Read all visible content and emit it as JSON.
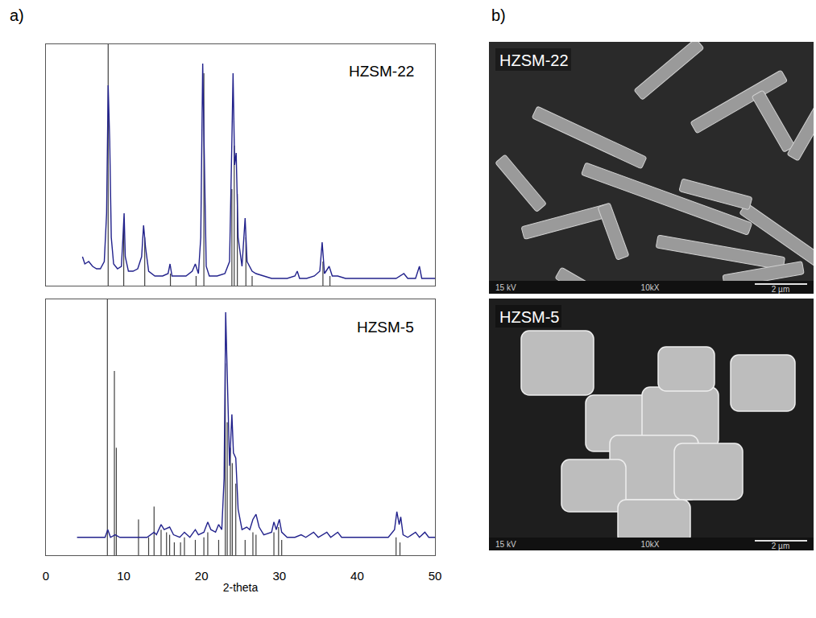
{
  "chart_data": [
    {
      "type": "line",
      "annotations": [
        "HZSM-22"
      ],
      "xlim": [
        0,
        50
      ],
      "ylim": [
        0,
        100
      ],
      "tick_labels": false,
      "grid": false,
      "series": [
        {
          "type": "stick",
          "color": "#404040",
          "line_style": "solid",
          "x": [
            8.0,
            10.0,
            12.7,
            16.0,
            19.3,
            20.3,
            23.9,
            24.2,
            24.6,
            25.7,
            26.5,
            35.6,
            36.5
          ],
          "values": [
            100,
            26,
            20,
            5,
            4,
            88,
            40,
            58,
            38,
            20,
            4,
            10,
            4
          ]
        },
        {
          "type": "line",
          "color": "#22228c",
          "line_style": "solid",
          "x": [
            4.7,
            5.0,
            5.5,
            6.0,
            6.5,
            7.0,
            7.5,
            7.8,
            8.0,
            8.2,
            8.4,
            8.7,
            9.2,
            9.7,
            9.9,
            10.05,
            10.2,
            10.6,
            11.2,
            11.8,
            12.3,
            12.55,
            12.8,
            13.2,
            14.0,
            15.0,
            15.7,
            15.95,
            16.2,
            17.0,
            18.0,
            18.8,
            19.2,
            19.6,
            19.9,
            20.15,
            20.35,
            20.6,
            21.0,
            22.0,
            23.0,
            23.6,
            23.9,
            24.05,
            24.25,
            24.45,
            24.7,
            25.2,
            25.6,
            25.85,
            26.5,
            27.0,
            28.0,
            29.0,
            30.0,
            31.0,
            32.0,
            32.3,
            32.6,
            33.5,
            34.5,
            35.2,
            35.5,
            35.8,
            36.4,
            36.8,
            37.5,
            38.5,
            40.0,
            42.0,
            44.0,
            45.0,
            46.0,
            46.5,
            47.5,
            48.0,
            48.3,
            49.0,
            50.0
          ],
          "values": [
            12,
            9,
            10,
            8,
            7,
            7,
            10,
            30,
            83,
            60,
            20,
            9,
            7,
            8,
            20,
            30,
            12,
            6,
            6,
            7,
            12,
            25,
            16,
            6,
            4,
            4,
            5,
            9,
            4,
            4,
            4,
            6,
            9,
            5,
            20,
            92,
            55,
            8,
            4,
            4,
            5,
            10,
            60,
            88,
            50,
            55,
            20,
            8,
            28,
            10,
            6,
            5,
            4,
            3,
            3,
            3,
            4,
            6,
            3,
            3,
            4,
            6,
            18,
            5,
            8,
            4,
            4,
            3,
            3,
            3,
            3,
            3,
            5,
            3,
            3,
            8,
            3,
            3,
            3
          ]
        }
      ]
    },
    {
      "type": "line",
      "annotations": [
        "HZSM-5"
      ],
      "xlabel": "2-theta",
      "xlim": [
        0,
        50
      ],
      "ylim": [
        0,
        100
      ],
      "xticks": [
        0,
        10,
        20,
        30,
        40,
        50
      ],
      "tick_labels": "x",
      "grid": false,
      "series": [
        {
          "type": "stick",
          "color": "#404040",
          "line_style": "solid",
          "x": [
            7.9,
            8.8,
            9.05,
            11.9,
            13.2,
            13.9,
            14.8,
            15.5,
            15.9,
            16.5,
            17.3,
            17.8,
            19.2,
            20.3,
            20.8,
            22.2,
            23.05,
            23.3,
            23.7,
            23.95,
            24.4,
            25.6,
            26.6,
            27.0,
            29.3,
            29.9,
            30.3,
            45.0,
            45.5
          ],
          "values": [
            100,
            72,
            42,
            14,
            7,
            19,
            10,
            9,
            8,
            5,
            5,
            7,
            6,
            7,
            9,
            6,
            75,
            52,
            42,
            36,
            28,
            6,
            9,
            8,
            9,
            11,
            6,
            7,
            5
          ]
        },
        {
          "type": "line",
          "color": "#22228c",
          "line_style": "solid",
          "x": [
            4.0,
            6.0,
            7.6,
            7.95,
            8.3,
            8.9,
            9.5,
            11.0,
            12.0,
            13.0,
            13.9,
            14.2,
            14.8,
            15.2,
            15.9,
            16.4,
            17.2,
            17.8,
            18.5,
            19.2,
            19.6,
            20.3,
            20.8,
            21.2,
            21.8,
            22.2,
            22.6,
            22.9,
            23.1,
            23.35,
            23.6,
            23.9,
            24.1,
            24.4,
            24.7,
            25.2,
            25.8,
            26.2,
            26.6,
            27.0,
            27.4,
            28.0,
            29.0,
            29.3,
            29.6,
            30.0,
            30.3,
            31.0,
            32.0,
            32.8,
            33.4,
            34.4,
            35.0,
            36.1,
            36.6,
            37.5,
            38.0,
            40.0,
            42.0,
            44.0,
            44.8,
            45.1,
            45.4,
            45.6,
            45.9,
            46.5,
            47.5,
            48.0,
            48.7,
            49.2,
            50.0
          ],
          "values": [
            7,
            7,
            7,
            10,
            7,
            8,
            7,
            7,
            7,
            7,
            9,
            8,
            12,
            10,
            11,
            8,
            7,
            9,
            7,
            10,
            8,
            9,
            13,
            10,
            9,
            12,
            10,
            30,
            95,
            60,
            35,
            55,
            40,
            38,
            18,
            10,
            11,
            10,
            14,
            16,
            11,
            8,
            9,
            13,
            10,
            14,
            9,
            7,
            7,
            8,
            7,
            9,
            7,
            9,
            7,
            9,
            7,
            7,
            7,
            7,
            10,
            17,
            12,
            15,
            8,
            7,
            9,
            7,
            9,
            7,
            7
          ]
        }
      ]
    }
  ],
  "panels": {
    "a": "a)",
    "b": "b)"
  },
  "micrographs": [
    {
      "label": "HZSM-22",
      "voltage": "15 kV",
      "magnification": "10kX",
      "scale_bar": "2 µm"
    },
    {
      "label": "HZSM-5",
      "voltage": "15 kV",
      "magnification": "10kX",
      "scale_bar": "2 µm"
    }
  ]
}
